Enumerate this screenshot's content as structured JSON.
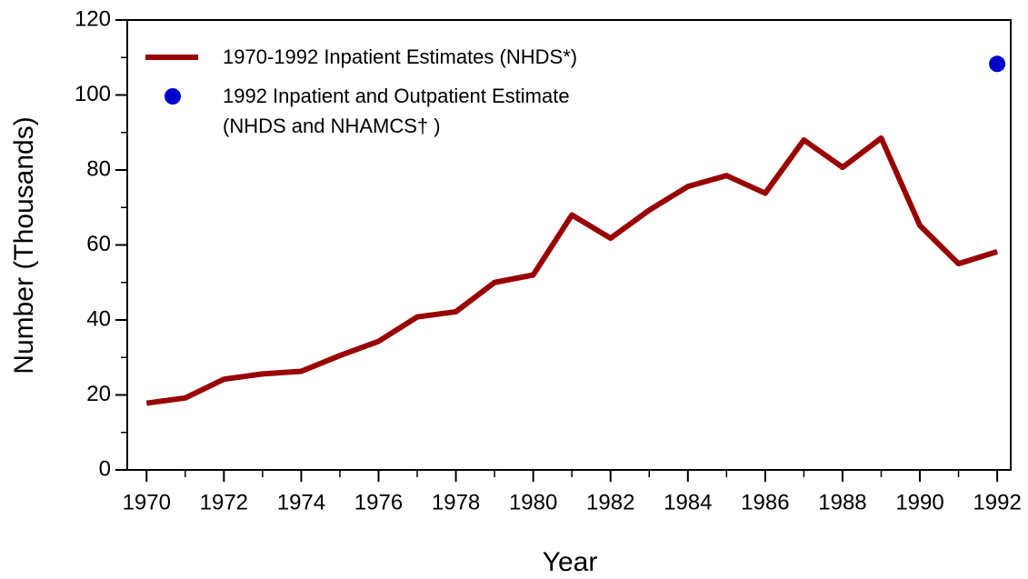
{
  "chart_data": {
    "type": "line",
    "x_label": "Year",
    "y_label": "Number (Thousands)",
    "series": [
      {
        "name": "1970-1992 Inpatient Estimates (NHDS*)",
        "color": "#990000",
        "x": [
          1970,
          1971,
          1972,
          1973,
          1974,
          1975,
          1976,
          1977,
          1978,
          1979,
          1980,
          1981,
          1982,
          1983,
          1984,
          1985,
          1986,
          1987,
          1988,
          1989,
          1990,
          1991,
          1992
        ],
        "values": [
          17.8,
          19.2,
          24.2,
          25.6,
          26.3,
          30.5,
          34.3,
          40.8,
          42.2,
          50.0,
          52.0,
          68.0,
          61.8,
          69.3,
          75.6,
          78.5,
          73.8,
          88.0,
          80.7,
          88.5,
          65.2,
          55.0,
          58.2
        ]
      },
      {
        "name": "1992 Inpatient and Outpatient Estimate\n(NHDS and NHAMCS† )",
        "color": "#0000cc",
        "marker": "dot",
        "x": [
          1992
        ],
        "values": [
          108.3
        ]
      }
    ],
    "xlim": [
      1969.5,
      1992.35
    ],
    "xticks": [
      1970,
      1972,
      1974,
      1976,
      1978,
      1980,
      1982,
      1984,
      1986,
      1988,
      1990,
      1992
    ],
    "ylim": [
      0,
      120
    ],
    "yticks": [
      0,
      20,
      40,
      60,
      80,
      100,
      120
    ],
    "legend": "upper-left"
  }
}
